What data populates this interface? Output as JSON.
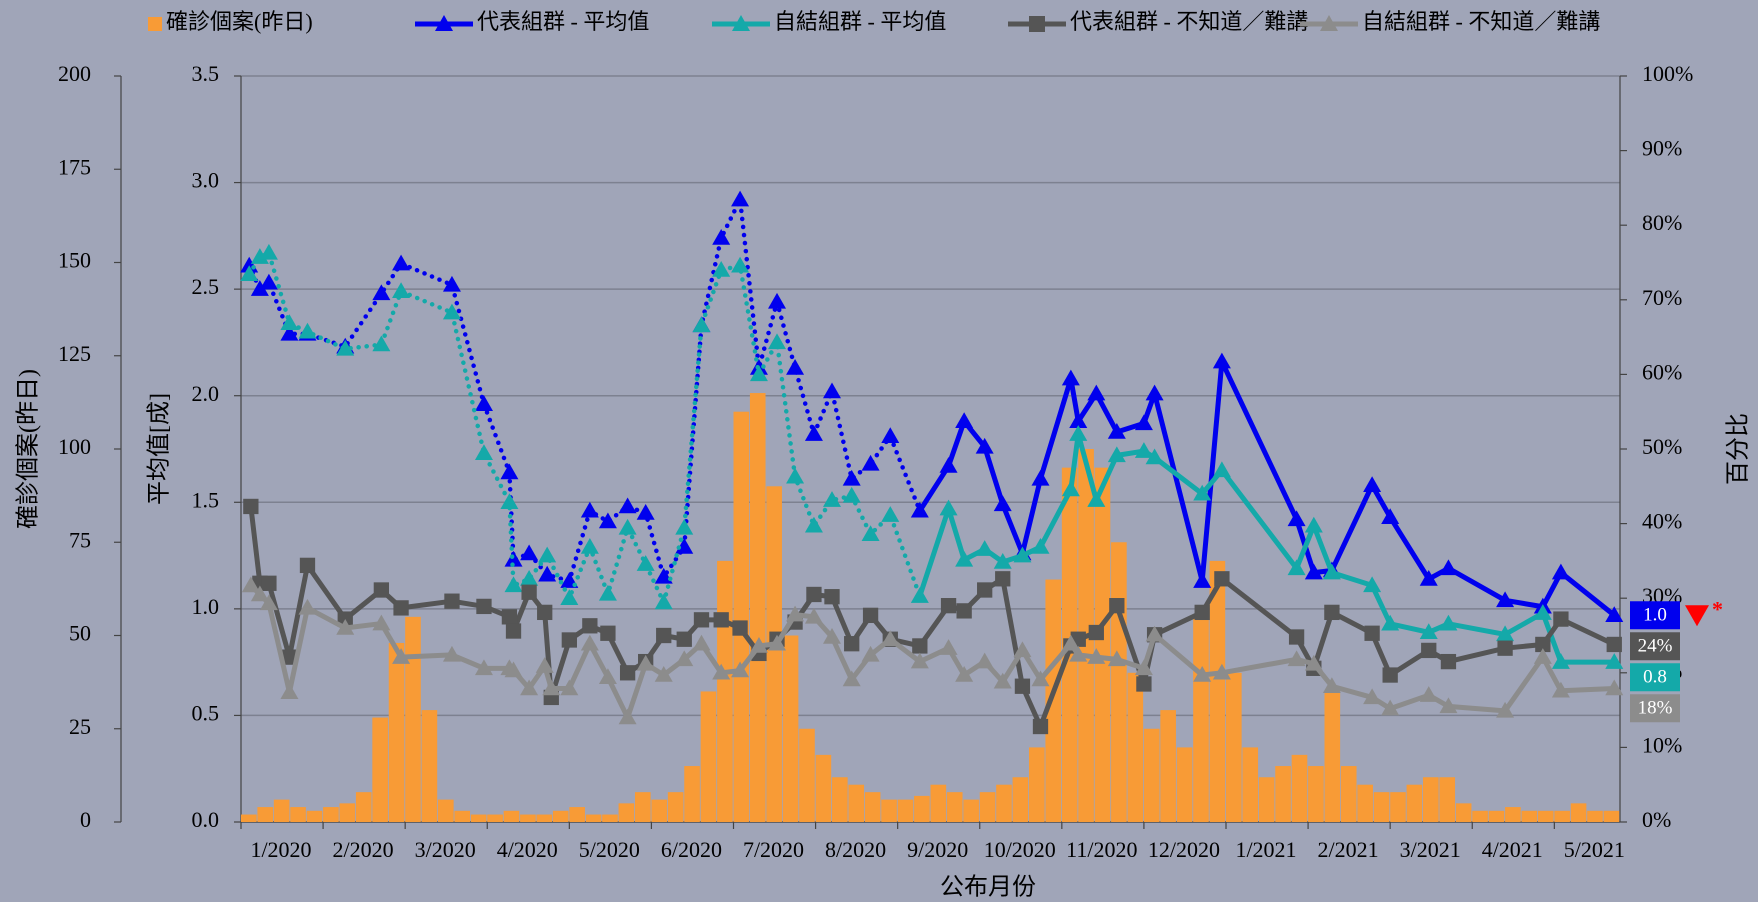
{
  "chart_data": {
    "type": "combo",
    "x_label": "公布月份",
    "y_label": "平均值[成]",
    "y2_label": "百分比",
    "y3_label": "確診個案(昨日)",
    "xlim": [
      0,
      16.8
    ],
    "xticks": [
      {
        "value": 0,
        "label": "1/2020"
      },
      {
        "value": 1,
        "label": "2/2020"
      },
      {
        "value": 2,
        "label": "3/2020"
      },
      {
        "value": 3,
        "label": "4/2020"
      },
      {
        "value": 4,
        "label": "5/2020"
      },
      {
        "value": 5,
        "label": "6/2020"
      },
      {
        "value": 6,
        "label": "7/2020"
      },
      {
        "value": 7,
        "label": "8/2020"
      },
      {
        "value": 8,
        "label": "9/2020"
      },
      {
        "value": 9,
        "label": "10/2020"
      },
      {
        "value": 10,
        "label": "11/2020"
      },
      {
        "value": 11,
        "label": "12/2020"
      },
      {
        "value": 12,
        "label": "1/2021"
      },
      {
        "value": 13,
        "label": "2/2021"
      },
      {
        "value": 14,
        "label": "3/2021"
      },
      {
        "value": 15,
        "label": "4/2021"
      },
      {
        "value": 16,
        "label": "5/2021"
      }
    ],
    "ylim": [
      0,
      3.5
    ],
    "yticks": [
      {
        "value": 0,
        "label": "0.0"
      },
      0.5,
      {
        "value": 1,
        "label": "1.0"
      },
      1.5,
      {
        "value": 2,
        "label": "2.0"
      },
      2.5,
      {
        "value": 3,
        "label": "3.0"
      },
      3.5
    ],
    "y2lim": [
      0,
      100
    ],
    "y2ticks": [
      {
        "value": 0,
        "label": "0%"
      },
      {
        "value": 10,
        "label": "10%"
      },
      {
        "value": 20,
        "label": "20%"
      },
      {
        "value": 30,
        "label": "30%"
      },
      {
        "value": 40,
        "label": "40%"
      },
      {
        "value": 50,
        "label": "50%"
      },
      {
        "value": 60,
        "label": "60%"
      },
      {
        "value": 70,
        "label": "70%"
      },
      {
        "value": 80,
        "label": "80%"
      },
      {
        "value": 90,
        "label": "90%"
      },
      {
        "value": 100,
        "label": "100%"
      }
    ],
    "y3lim": [
      0,
      200
    ],
    "y3ticks": [
      0,
      25,
      50,
      75,
      100,
      125,
      150,
      175,
      200
    ],
    "grid": true,
    "series": [
      {
        "name": "確診個案(昨日)",
        "type": "bar",
        "axis": "y3",
        "color": "#f89b36",
        "bins": [
          0,
          0.2,
          0.4,
          0.6,
          0.8,
          1,
          1.2,
          1.4,
          1.6,
          1.8,
          2,
          2.2,
          2.4,
          2.6,
          2.8,
          3,
          3.2,
          3.4,
          3.6,
          3.8,
          4,
          4.2,
          4.4,
          4.6,
          4.8,
          5,
          5.2,
          5.4,
          5.6,
          5.8,
          6,
          6.2,
          6.4,
          6.6,
          6.8,
          7,
          7.2,
          7.4,
          7.6,
          7.8,
          8,
          8.2,
          8.4,
          8.6,
          8.8,
          9,
          9.2,
          9.4,
          9.6,
          9.8,
          10,
          10.2,
          10.4,
          10.6,
          10.8,
          11,
          11.2,
          11.4,
          11.6,
          11.8,
          12,
          12.2,
          12.4,
          12.6,
          12.8,
          13,
          13.2,
          13.4,
          13.6,
          13.8,
          14,
          14.2,
          14.4,
          14.6,
          14.8,
          15,
          15.2,
          15.4,
          15.6,
          15.8,
          16,
          16.2,
          16.4,
          16.6,
          16.8
        ],
        "values": [
          2,
          4,
          6,
          4,
          3,
          4,
          5,
          8,
          28,
          48,
          55,
          30,
          6,
          3,
          2,
          2,
          3,
          2,
          2,
          3,
          4,
          2,
          2,
          5,
          8,
          6,
          8,
          15,
          35,
          70,
          110,
          115,
          90,
          50,
          25,
          18,
          12,
          10,
          8,
          6,
          6,
          7,
          10,
          8,
          6,
          8,
          10,
          12,
          20,
          65,
          95,
          100,
          95,
          75,
          40,
          25,
          30,
          20,
          55,
          70,
          40,
          20,
          12,
          15,
          18,
          15,
          35,
          15,
          10,
          8,
          8,
          10,
          12,
          12,
          5,
          3,
          3,
          4,
          3,
          3,
          3,
          5,
          3,
          3
        ]
      },
      {
        "name": "代表組群 - 平均值",
        "type": "line",
        "axis": "y",
        "color": "#0000ee",
        "marker": "triangle",
        "dotted_until": 8.27,
        "end_label": "1.0",
        "end_note": "*",
        "end_note_color": "#ff0000",
        "x": [
          0.1,
          0.23,
          0.34,
          0.59,
          0.81,
          1.27,
          1.71,
          1.95,
          2.57,
          2.96,
          3.27,
          3.32,
          3.51,
          3.73,
          4.0,
          4.25,
          4.47,
          4.71,
          4.93,
          5.15,
          5.4,
          5.61,
          5.85,
          6.08,
          6.31,
          6.53,
          6.75,
          6.98,
          7.2,
          7.44,
          7.67,
          7.91,
          8.27,
          8.62,
          8.81,
          9.06,
          9.28,
          9.52,
          9.74,
          10.11,
          10.2,
          10.42,
          10.67,
          11.0,
          11.13,
          11.71,
          11.95,
          12.86,
          13.07,
          13.29,
          13.78,
          14.0,
          14.47,
          14.71,
          15.4,
          15.86,
          16.08,
          16.73
        ],
        "values": [
          2.61,
          2.5,
          2.53,
          2.29,
          2.29,
          2.23,
          2.48,
          2.62,
          2.52,
          1.96,
          1.64,
          1.23,
          1.26,
          1.16,
          1.13,
          1.46,
          1.41,
          1.48,
          1.45,
          1.15,
          1.29,
          2.33,
          2.74,
          2.92,
          2.13,
          2.44,
          2.13,
          1.82,
          2.02,
          1.61,
          1.68,
          1.81,
          1.46,
          1.67,
          1.88,
          1.76,
          1.49,
          1.26,
          1.61,
          2.08,
          1.88,
          2.01,
          1.83,
          1.87,
          2.01,
          1.13,
          2.16,
          1.42,
          1.17,
          1.18,
          1.58,
          1.43,
          1.14,
          1.19,
          1.04,
          1.01,
          1.17,
          0.97
        ]
      },
      {
        "name": "自結組群 - 平均值",
        "type": "line",
        "axis": "y",
        "color": "#14a9a9",
        "marker": "triangle",
        "dotted_until": 8.27,
        "end_label": "0.8",
        "x": [
          0.1,
          0.23,
          0.34,
          0.59,
          0.81,
          1.27,
          1.71,
          1.95,
          2.57,
          2.96,
          3.27,
          3.32,
          3.51,
          3.73,
          4.0,
          4.25,
          4.47,
          4.71,
          4.93,
          5.15,
          5.4,
          5.61,
          5.85,
          6.08,
          6.31,
          6.53,
          6.75,
          6.98,
          7.2,
          7.44,
          7.67,
          7.91,
          8.27,
          8.62,
          8.81,
          9.06,
          9.28,
          9.52,
          9.74,
          10.11,
          10.2,
          10.42,
          10.67,
          11.0,
          11.13,
          11.71,
          11.95,
          12.86,
          13.07,
          13.29,
          13.78,
          14.0,
          14.47,
          14.71,
          15.4,
          15.86,
          16.08,
          16.73
        ],
        "values": [
          2.57,
          2.65,
          2.67,
          2.34,
          2.3,
          2.22,
          2.24,
          2.49,
          2.39,
          1.73,
          1.5,
          1.11,
          1.14,
          1.25,
          1.05,
          1.29,
          1.07,
          1.38,
          1.21,
          1.03,
          1.38,
          2.33,
          2.59,
          2.61,
          2.1,
          2.25,
          1.62,
          1.39,
          1.51,
          1.53,
          1.35,
          1.44,
          1.06,
          1.47,
          1.23,
          1.28,
          1.22,
          1.25,
          1.29,
          1.56,
          1.82,
          1.51,
          1.72,
          1.74,
          1.71,
          1.54,
          1.65,
          1.19,
          1.39,
          1.17,
          1.11,
          0.93,
          0.89,
          0.93,
          0.88,
          0.98,
          0.75,
          0.75
        ]
      },
      {
        "name": "代表組群 - 不知道／難講",
        "type": "line",
        "axis": "y2",
        "color": "#555555",
        "marker": "square",
        "end_label": "24%",
        "x": [
          0.12,
          0.23,
          0.34,
          0.59,
          0.81,
          1.27,
          1.71,
          1.95,
          2.57,
          2.96,
          3.27,
          3.32,
          3.51,
          3.7,
          3.78,
          4.0,
          4.25,
          4.47,
          4.71,
          4.93,
          5.15,
          5.4,
          5.61,
          5.85,
          6.08,
          6.31,
          6.53,
          6.75,
          6.98,
          7.2,
          7.44,
          7.67,
          7.91,
          8.27,
          8.62,
          8.81,
          9.06,
          9.28,
          9.52,
          9.74,
          10.11,
          10.2,
          10.42,
          10.67,
          11.0,
          11.13,
          11.71,
          11.95,
          12.86,
          13.07,
          13.29,
          13.78,
          14.0,
          14.47,
          14.71,
          15.4,
          15.86,
          16.08,
          16.73
        ],
        "values": [
          42.3,
          32.0,
          32.0,
          22.1,
          34.4,
          27.2,
          31.1,
          28.7,
          29.6,
          28.9,
          27.5,
          25.6,
          30.8,
          28.1,
          16.7,
          24.4,
          26.3,
          25.3,
          20.0,
          21.5,
          25.0,
          24.5,
          27.1,
          27.1,
          26.0,
          22.6,
          24.5,
          26.8,
          30.5,
          30.2,
          23.9,
          27.7,
          24.5,
          23.6,
          29.0,
          28.3,
          31.1,
          32.6,
          18.2,
          12.8,
          23.6,
          24.5,
          25.4,
          29.0,
          18.5,
          25.1,
          28.1,
          32.6,
          24.8,
          20.6,
          28.1,
          25.3,
          19.7,
          23.0,
          21.5,
          23.3,
          23.8,
          27.2,
          23.8
        ]
      },
      {
        "name": "自結組群 - 不知道／難講",
        "type": "line",
        "axis": "y2",
        "color": "#8c8c8c",
        "marker": "triangle",
        "end_label": "18%",
        "x": [
          0.12,
          0.23,
          0.34,
          0.59,
          0.81,
          1.27,
          1.71,
          1.95,
          2.57,
          2.96,
          3.27,
          3.32,
          3.51,
          3.7,
          3.78,
          4.0,
          4.25,
          4.47,
          4.71,
          4.93,
          5.15,
          5.4,
          5.61,
          5.85,
          6.08,
          6.31,
          6.53,
          6.75,
          6.98,
          7.2,
          7.44,
          7.67,
          7.91,
          8.27,
          8.62,
          8.81,
          9.06,
          9.28,
          9.52,
          9.74,
          10.11,
          10.2,
          10.42,
          10.67,
          11.0,
          11.13,
          11.71,
          11.95,
          12.86,
          13.07,
          13.29,
          13.78,
          14.0,
          14.47,
          14.71,
          15.4,
          15.86,
          16.08,
          16.73
        ],
        "values": [
          31.7,
          30.5,
          29.3,
          17.4,
          28.7,
          26.0,
          26.6,
          22.1,
          22.4,
          20.6,
          20.6,
          20.3,
          17.9,
          20.9,
          17.9,
          17.9,
          23.9,
          19.4,
          14.0,
          21.2,
          19.7,
          21.8,
          23.9,
          20.0,
          20.3,
          23.6,
          23.9,
          27.8,
          27.5,
          24.8,
          19.1,
          22.4,
          24.5,
          21.5,
          23.3,
          19.7,
          21.5,
          18.8,
          23.0,
          19.1,
          23.9,
          22.4,
          22.1,
          21.8,
          20.6,
          25.1,
          19.7,
          20.0,
          21.8,
          21.2,
          18.2,
          16.7,
          15.2,
          17.0,
          15.5,
          14.9,
          22.1,
          17.6,
          17.9
        ]
      }
    ]
  }
}
